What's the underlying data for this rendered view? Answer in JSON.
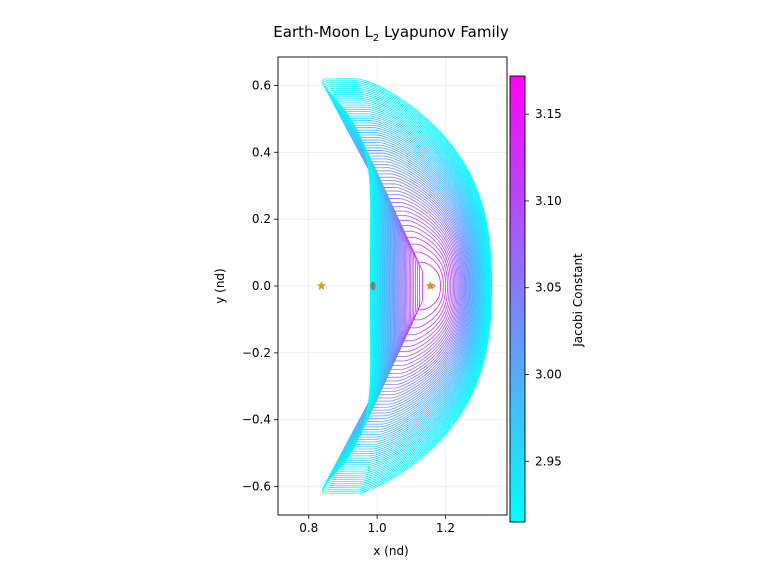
{
  "chart_data": {
    "type": "line",
    "title_main": "Earth-Moon L",
    "title_sub": "2",
    "title_rest": " Lyapunov Family",
    "xlabel": "x (nd)",
    "ylabel": "y (nd)",
    "xlim": [
      0.71,
      1.38
    ],
    "ylim": [
      -0.685,
      0.685
    ],
    "x_ticks": [
      0.8,
      1.0,
      1.2
    ],
    "x_tick_labels": [
      "0.8",
      "1.0",
      "1.2"
    ],
    "y_ticks": [
      0.6,
      0.4,
      0.2,
      0.0,
      -0.2,
      -0.4,
      -0.6
    ],
    "y_tick_labels": [
      "0.6",
      "0.4",
      "0.2",
      "0.0",
      "−0.2",
      "−0.4",
      "−0.6"
    ],
    "grid": true,
    "colormap": [
      "#00ffff",
      "#ff00ff"
    ],
    "family": {
      "count": 60,
      "lagrange_point_x": 1.1557,
      "min_jacobi": 2.915,
      "max_jacobi": 3.172,
      "orbits_largest": {
        "x_left": 0.985,
        "x_right": 1.335,
        "y_extent": 0.62,
        "x_at_max_y": 0.91
      }
    },
    "markers": [
      {
        "name": "L1",
        "x": 0.837,
        "y": 0.0,
        "symbol": "star",
        "color": "#d4a017"
      },
      {
        "name": "L2",
        "x": 1.1557,
        "y": 0.0,
        "symbol": "star",
        "color": "#d4a017"
      },
      {
        "name": "Moon",
        "x": 0.9878,
        "y": 0.0,
        "symbol": "circle",
        "color": "#808080"
      }
    ],
    "colorbar": {
      "label": "Jacobi Constant",
      "vmin": 2.915,
      "vmax": 3.172,
      "ticks": [
        2.95,
        3.0,
        3.05,
        3.1,
        3.15
      ],
      "tick_labels": [
        "2.95",
        "3.00",
        "3.05",
        "3.10",
        "3.15"
      ],
      "colors": [
        "#00ffff",
        "#ff00ff"
      ]
    }
  }
}
